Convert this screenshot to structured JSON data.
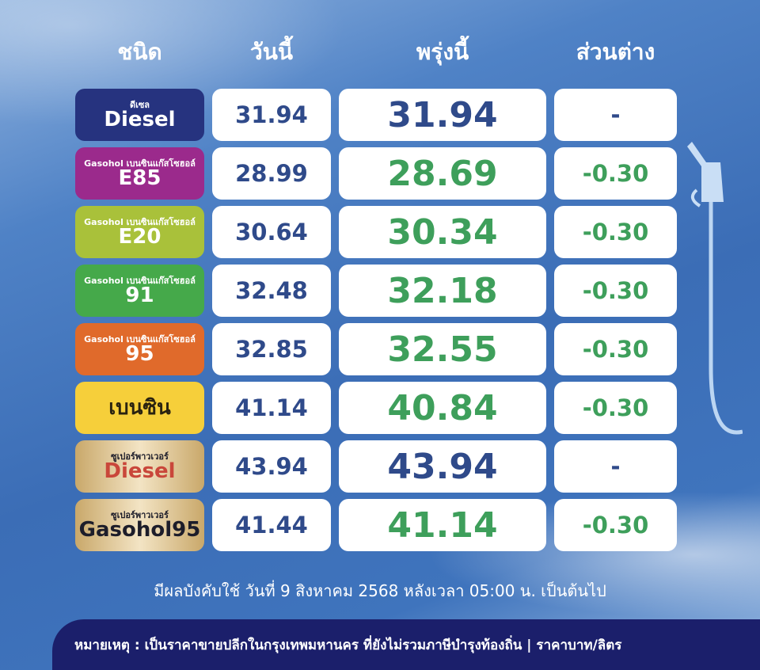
{
  "headers": {
    "type": "ชนิด",
    "today": "วันนี้",
    "tomorrow": "พรุ่งนี้",
    "diff": "ส่วนต่าง"
  },
  "rows": [
    {
      "label_top": "ดีเซล",
      "label_main": "Diesel",
      "today": "31.94",
      "tomorrow": "31.94",
      "diff": "-",
      "bg": "#26337f",
      "fg": "#ffffff",
      "changed": false
    },
    {
      "label_top": "Gasohol เบนซินแก๊สโซฮอล์",
      "label_main": "E85",
      "today": "28.99",
      "tomorrow": "28.69",
      "diff": "-0.30",
      "bg": "#9b2a8c",
      "fg": "#ffffff",
      "changed": true
    },
    {
      "label_top": "Gasohol เบนซินแก๊สโซฮอล์",
      "label_main": "E20",
      "today": "30.64",
      "tomorrow": "30.34",
      "diff": "-0.30",
      "bg": "#a9c13a",
      "fg": "#ffffff",
      "changed": true
    },
    {
      "label_top": "Gasohol เบนซินแก๊สโซฮอล์",
      "label_main": "91",
      "today": "32.48",
      "tomorrow": "32.18",
      "diff": "-0.30",
      "bg": "#45a94a",
      "fg": "#ffffff",
      "changed": true
    },
    {
      "label_top": "Gasohol เบนซินแก๊สโซฮอล์",
      "label_main": "95",
      "today": "32.85",
      "tomorrow": "32.55",
      "diff": "-0.30",
      "bg": "#e06a2b",
      "fg": "#ffffff",
      "changed": true
    },
    {
      "label_top": "",
      "label_main": "เบนซิน",
      "today": "41.14",
      "tomorrow": "40.84",
      "diff": "-0.30",
      "bg": "#f6cf3a",
      "fg": "#2a2310",
      "changed": true
    },
    {
      "label_top": "ซูเปอร์พาวเวอร์",
      "label_main": "Diesel",
      "today": "43.94",
      "tomorrow": "43.94",
      "diff": "-",
      "bg": "#d9bf8d",
      "fg": "#c9473a",
      "changed": false
    },
    {
      "label_top": "ซูเปอร์พาวเวอร์",
      "label_main": "Gasohol95",
      "today": "41.44",
      "tomorrow": "41.14",
      "diff": "-0.30",
      "bg": "#d9bf8d",
      "fg": "#1d1d2a",
      "changed": true
    }
  ],
  "colors": {
    "changed": "#3e9f5b",
    "unchanged": "#2f4a8a"
  },
  "effective_note": "มีผลบังคับใช้ วันที่ 9 สิงหาคม 2568 หลังเวลา 05:00 น. เป็นต้นไป",
  "footer_note": "หมายเหตุ : เป็นราคาขายปลีกในกรุงเทพมหานคร ที่ยังไม่รวมภาษีบำรุงท้องถิ่น | ราคาบาท/ลิตร"
}
